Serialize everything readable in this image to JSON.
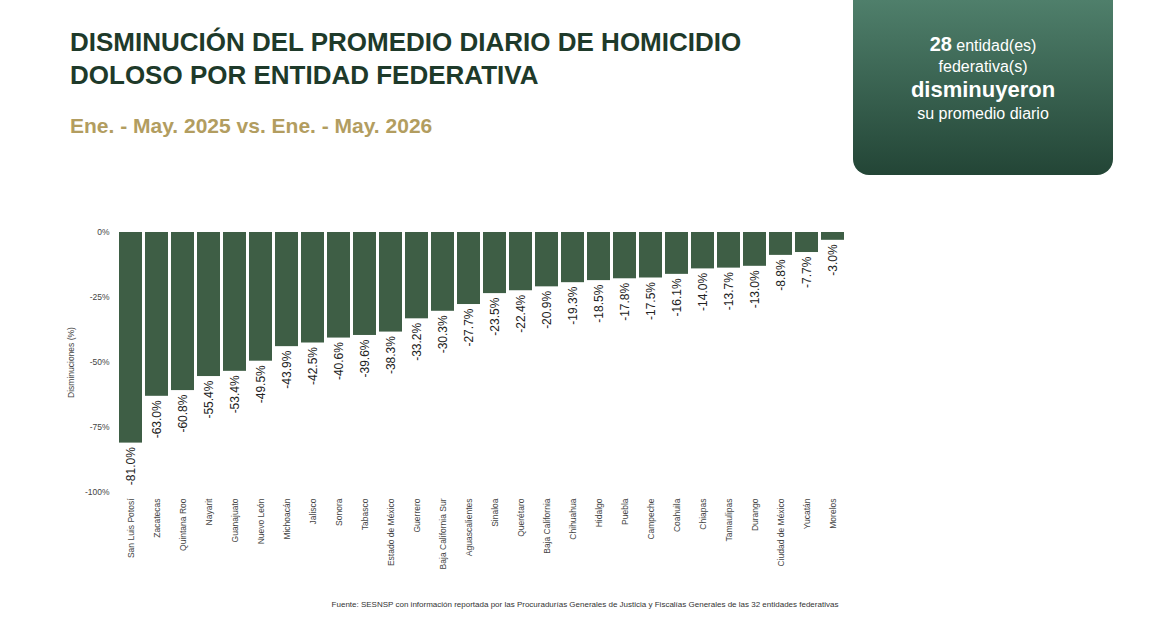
{
  "chart_data": {
    "type": "bar",
    "title": "DISMINUCIÓN DEL PROMEDIO DIARIO DE HOMICIDIO DOLOSO POR ENTIDAD FEDERATIVA",
    "subtitle": "Ene. - May. 2025 vs. Ene. - May. 2026",
    "annotation": {
      "value": 28,
      "lines": [
        "entidad(es) federativa(s)",
        "disminuyeron",
        "su promedio diario"
      ]
    },
    "caption": "Fuente: SESNSP con información reportada por las Procuradurías Generales de Justicia y Fiscalías Generales de las 32 entidades federativas",
    "y_label": "Disminuciones (%)",
    "categories": [
      "San Luis Potosí",
      "Zacatecas",
      "Quintana Roo",
      "Nayarit",
      "Guanajuato",
      "Nuevo León",
      "Michoacán",
      "Jalisco",
      "Sonora",
      "Tabasco",
      "Estado de México",
      "Guerrero",
      "Baja California Sur",
      "Aguascalientes",
      "Sinaloa",
      "Querétaro",
      "Baja California",
      "Chihuahua",
      "Hidalgo",
      "Puebla",
      "Campeche",
      "Coahuila",
      "Chiapas",
      "Tamaulipas",
      "Durango",
      "Ciudad de México",
      "Yucatán",
      "Morelos"
    ],
    "values": [
      -81.0,
      -63.0,
      -60.8,
      -55.4,
      -53.4,
      -49.5,
      -43.9,
      -42.5,
      -40.6,
      -39.6,
      -38.3,
      -33.2,
      -30.3,
      -27.7,
      -23.5,
      -22.4,
      -20.9,
      -19.3,
      -18.5,
      -17.8,
      -17.5,
      -16.1,
      -14.0,
      -13.7,
      -13.0,
      -8.8,
      -7.7,
      -3.0
    ],
    "value_labels": [
      "-81.0%",
      "-63.0%",
      "-60.8%",
      "-55.4%",
      "-53.4%",
      "-49.5%",
      "-43.9%",
      "-42.5%",
      "-40.6%",
      "-39.6%",
      "-38.3%",
      "-33.2%",
      "-30.3%",
      "-27.7%",
      "-23.5%",
      "-22.4%",
      "-20.9%",
      "-19.3%",
      "-18.5%",
      "-17.8%",
      "-17.5%",
      "-16.1%",
      "-14.0%",
      "-13.7%",
      "-13.0%",
      "-8.8%",
      "-7.7%",
      "-3.0%"
    ],
    "color": "#3e5e45",
    "ylim": [
      -100,
      0
    ],
    "yticks": [
      {
        "value": 0,
        "label": "0%"
      },
      {
        "value": -25,
        "label": "-25%"
      },
      {
        "value": -50,
        "label": "-50%"
      },
      {
        "value": -75,
        "label": "-75%"
      },
      {
        "value": -100,
        "label": "-100%"
      }
    ],
    "data_labels": true,
    "grid": false
  }
}
